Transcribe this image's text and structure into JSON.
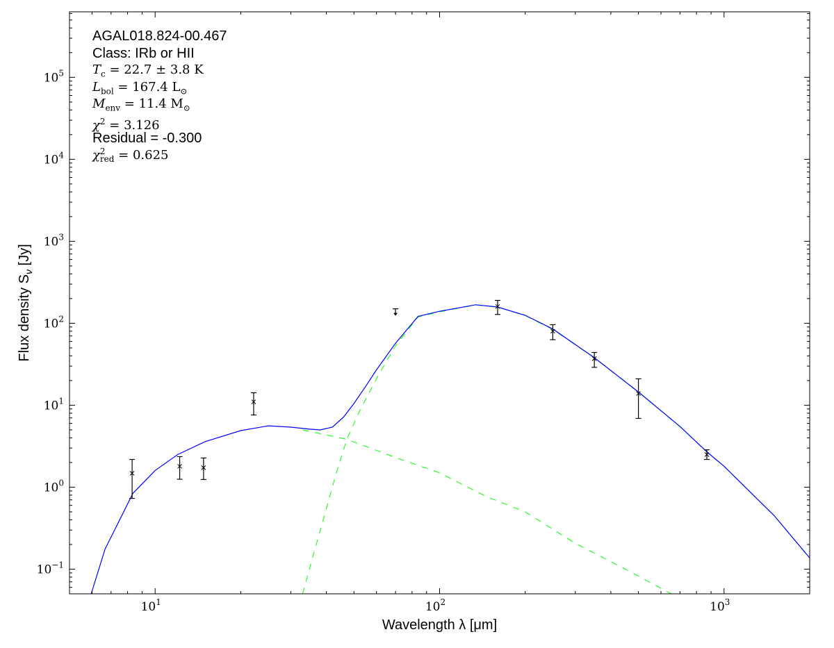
{
  "chart_data": {
    "type": "scatter",
    "xlabel": "Wavelength λ [μm]",
    "ylabel": "Flux density S",
    "ylabel_sub": "ν",
    "ylabel_unit": " [Jy]",
    "xscale": "log",
    "yscale": "log",
    "xlim": [
      5,
      2000
    ],
    "ylim": [
      0.05,
      630000
    ],
    "grid": false,
    "x_ticks": [
      {
        "v": 10,
        "label": "10",
        "exp": "1"
      },
      {
        "v": 100,
        "label": "10",
        "exp": "2"
      },
      {
        "v": 1000,
        "label": "10",
        "exp": "3"
      }
    ],
    "y_ticks": [
      {
        "v": 0.1,
        "label": "10",
        "exp": "−1"
      },
      {
        "v": 1,
        "label": "10",
        "exp": "0"
      },
      {
        "v": 10,
        "label": "10",
        "exp": "1"
      },
      {
        "v": 100,
        "label": "10",
        "exp": "2"
      },
      {
        "v": 1000,
        "label": "10",
        "exp": "3"
      },
      {
        "v": 10000,
        "label": "10",
        "exp": "4"
      },
      {
        "v": 100000,
        "label": "10",
        "exp": "5"
      }
    ],
    "points": [
      {
        "x": 8.3,
        "y": 1.48,
        "lo": 0.73,
        "hi": 2.18
      },
      {
        "x": 12.2,
        "y": 1.8,
        "lo": 1.25,
        "hi": 2.36
      },
      {
        "x": 14.8,
        "y": 1.73,
        "lo": 1.24,
        "hi": 2.27
      },
      {
        "x": 22.2,
        "y": 11.0,
        "lo": 7.6,
        "hi": 14.2
      },
      {
        "x": 160,
        "y": 160,
        "lo": 128,
        "hi": 190
      },
      {
        "x": 250,
        "y": 80,
        "lo": 63,
        "hi": 96
      },
      {
        "x": 350,
        "y": 37,
        "lo": 29,
        "hi": 44
      },
      {
        "x": 500,
        "y": 13.9,
        "lo": 6.9,
        "hi": 21
      },
      {
        "x": 870,
        "y": 2.5,
        "lo": 2.18,
        "hi": 2.86
      }
    ],
    "upper_limits": [
      {
        "x": 70,
        "y": 150
      }
    ],
    "series": [
      {
        "style": "solid",
        "color": "#0000ff",
        "x": [
          5.96,
          6.67,
          7.3,
          8.35,
          10,
          12,
          15,
          20,
          25,
          30,
          35,
          38,
          42,
          46,
          50,
          55,
          60,
          70,
          84,
          100,
          134,
          160,
          200,
          250,
          350,
          500,
          700,
          870,
          1000,
          1500,
          2000
        ],
        "y": [
          0.05,
          0.176,
          0.33,
          0.84,
          1.6,
          2.5,
          3.6,
          4.9,
          5.6,
          5.4,
          5.1,
          5.0,
          5.4,
          7.2,
          10.5,
          17,
          27,
          57,
          121,
          140,
          168,
          158,
          125,
          85,
          38,
          14.5,
          5.5,
          2.7,
          1.8,
          0.45,
          0.137
        ]
      },
      {
        "style": "dashed",
        "color": "#00ff00",
        "x": [
          33,
          47.2,
          70.7,
          100,
          147,
          200,
          300,
          450,
          652
        ],
        "y": [
          5.0,
          3.84,
          2.27,
          1.5,
          0.76,
          0.5,
          0.206,
          0.1,
          0.05
        ]
      },
      {
        "style": "dashed",
        "color": "#00ff00",
        "x": [
          33,
          36,
          39,
          42.7,
          44.4,
          47.2,
          52.5,
          60.8,
          70,
          84,
          100,
          134,
          160,
          200,
          250,
          350,
          500,
          700,
          870,
          1000,
          1500,
          2000
        ],
        "y": [
          0.05,
          0.15,
          0.4,
          1.24,
          1.94,
          3.84,
          8.7,
          23,
          53,
          119,
          138,
          167,
          157,
          124,
          84,
          37.8,
          14.4,
          5.48,
          2.69,
          1.79,
          0.448,
          0.136
        ]
      }
    ]
  },
  "annotations": {
    "source": "AGAL018.824-00.467",
    "class": "Class: IRb or HII",
    "tc": {
      "sym": "T",
      "sub": "c",
      "rest": " = 22.7 ± 3.8 K"
    },
    "lbol": {
      "sym": "L",
      "sub": "bol",
      "rest": " = 167.4 L",
      "rest_sub": "⊙"
    },
    "menv": {
      "sym": "M",
      "sub": "env",
      "rest": " = 11.4 M",
      "rest_sub": "⊙"
    },
    "chi2": {
      "sym": "χ",
      "sup": "2",
      "rest": " = 3.126"
    },
    "residual": "Residual = -0.300",
    "chi2red": {
      "sym": "χ",
      "sup": "2",
      "sub": "red",
      "rest": " = 0.625"
    }
  }
}
